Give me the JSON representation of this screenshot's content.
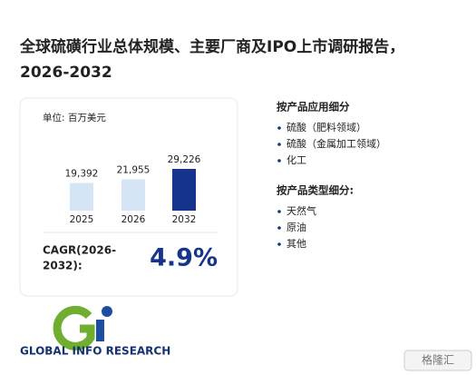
{
  "title": {
    "line1": "全球硫磺行业总体规模、主要厂商及IPO上市调研报告，",
    "line2": "2026-2032"
  },
  "chart_data": {
    "type": "bar",
    "unit": "单位: 百万美元",
    "categories": [
      "2025",
      "2026",
      "2032"
    ],
    "values": [
      19392,
      21955,
      29226
    ],
    "value_labels": [
      "19,392",
      "21,955",
      "29,226"
    ],
    "colors": [
      "#d5e5f6",
      "#d5e5f6",
      "#16348c"
    ]
  },
  "cagr": {
    "label_line1": "CAGR(2026-",
    "label_line2": "2032):",
    "value": "4.9%"
  },
  "segments": [
    {
      "heading": "按产品应用细分",
      "items": [
        "硫酸（肥料领域）",
        "硫酸（金属加工领域）",
        "化工"
      ]
    },
    {
      "heading": "按产品类型细分:",
      "items": [
        "天然气",
        "原油",
        "其他"
      ]
    }
  ],
  "logo": {
    "text": "GLOBAL INFO RESEARCH"
  },
  "badge": {
    "text": "格隆汇"
  }
}
